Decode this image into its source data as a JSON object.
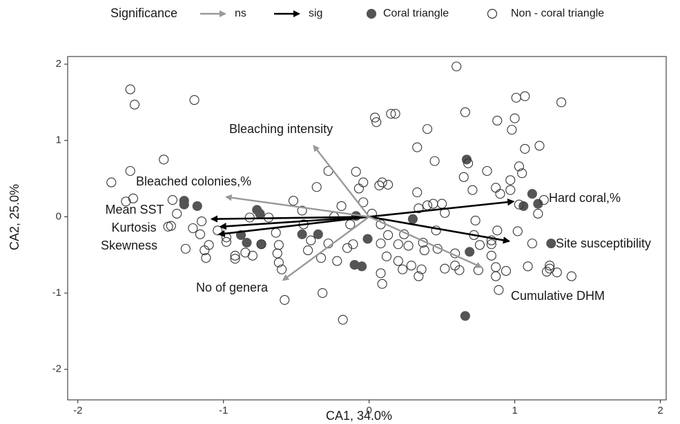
{
  "chart_data": {
    "type": "biplot",
    "xlabel": "CA1, 34.0%",
    "ylabel": "CA2, 25.0%",
    "xlim": [
      -2.07,
      2.04
    ],
    "ylim": [
      -2.4,
      2.1
    ],
    "xticks": [
      -2,
      -1,
      0,
      1,
      2
    ],
    "yticks": [
      -2,
      -1,
      0,
      1,
      2
    ],
    "grid": false,
    "legend": {
      "title": "Significance",
      "items": [
        {
          "name": "ns",
          "color": "#999999"
        },
        {
          "name": "sig",
          "color": "#000000"
        }
      ]
    },
    "arrows": [
      {
        "label": "Hard coral,%",
        "x": 0.99,
        "y": 0.2,
        "sig": true
      },
      {
        "label": "Site susceptibility",
        "x": 0.96,
        "y": -0.32,
        "sig": true
      },
      {
        "label": "Cumulative DHM",
        "x": 0.77,
        "y": -0.66,
        "sig": false
      },
      {
        "label": "Mean SST",
        "x": -1.08,
        "y": -0.03,
        "sig": true
      },
      {
        "label": "Kurtosis",
        "x": -1.02,
        "y": -0.13,
        "sig": true
      },
      {
        "label": "Skewness",
        "x": -1.03,
        "y": -0.23,
        "sig": true
      },
      {
        "label": "Bleached colonies,%",
        "x": -0.98,
        "y": 0.26,
        "sig": false
      },
      {
        "label": "Bleaching intensity",
        "x": -0.38,
        "y": 0.93,
        "sig": false
      },
      {
        "label": "No of genera",
        "x": -0.59,
        "y": -0.83,
        "sig": false
      }
    ],
    "series": [
      {
        "name": "Coral triangle",
        "color": "#555555",
        "filled": true,
        "x": [
          -1.27,
          -1.27,
          -1.18,
          -0.77,
          -0.75,
          -0.88,
          -0.84,
          -0.74,
          -0.46,
          -0.35,
          -0.09,
          -0.01,
          -0.1,
          -0.05,
          0.3,
          0.67,
          0.69,
          0.66,
          1.06,
          1.12,
          1.16,
          1.25
        ],
        "y": [
          0.21,
          0.16,
          0.14,
          0.09,
          0.04,
          -0.24,
          -0.34,
          -0.36,
          -0.23,
          -0.23,
          0.01,
          -0.29,
          -0.63,
          -0.65,
          -0.03,
          0.75,
          -0.46,
          -1.3,
          0.14,
          0.3,
          0.17,
          -0.35
        ]
      },
      {
        "name": "Non - coral triangle",
        "color": "#333333",
        "filled": false,
        "x": [
          -1.64,
          -1.61,
          -1.2,
          -1.41,
          -1.77,
          -1.64,
          -1.62,
          -1.67,
          -1.36,
          -1.38,
          -1.32,
          -1.35,
          -1.26,
          -1.21,
          -1.15,
          -1.16,
          -1.13,
          -1.12,
          -1.1,
          -1.04,
          -0.98,
          -0.98,
          -0.92,
          -0.92,
          -0.85,
          -0.8,
          -0.82,
          -0.74,
          -0.69,
          -0.64,
          -0.63,
          -0.62,
          -0.6,
          -0.62,
          -0.58,
          -0.52,
          -0.46,
          -0.45,
          -0.42,
          -0.4,
          -0.36,
          -0.33,
          -0.32,
          -0.28,
          -0.28,
          -0.24,
          -0.22,
          -0.19,
          -0.15,
          -0.13,
          -0.11,
          -0.09,
          -0.07,
          -0.04,
          -0.04,
          0.02,
          0.04,
          0.05,
          0.07,
          0.08,
          0.09,
          0.13,
          0.15,
          0.18,
          0.08,
          0.09,
          0.08,
          0.12,
          0.2,
          0.13,
          0.24,
          0.2,
          0.23,
          0.27,
          0.29,
          0.33,
          0.33,
          0.34,
          0.34,
          0.37,
          0.38,
          0.36,
          0.4,
          0.4,
          0.44,
          0.45,
          0.46,
          0.47,
          0.5,
          0.52,
          0.52,
          0.6,
          0.59,
          0.59,
          0.62,
          0.65,
          0.66,
          0.68,
          0.71,
          0.73,
          0.72,
          0.76,
          0.75,
          0.81,
          0.84,
          0.84,
          0.84,
          0.87,
          0.88,
          0.87,
          0.88,
          0.9,
          0.87,
          0.89,
          0.94,
          0.97,
          0.97,
          0.98,
          1.0,
          1.01,
          1.03,
          1.02,
          1.03,
          1.05,
          1.07,
          1.07,
          1.09,
          1.12,
          1.17,
          1.2,
          1.16,
          1.22,
          1.24,
          1.24,
          1.32,
          1.29,
          1.39,
          -0.18
        ],
        "y": [
          1.67,
          1.47,
          1.53,
          0.75,
          0.45,
          0.6,
          0.24,
          0.2,
          -0.12,
          -0.13,
          0.04,
          0.22,
          -0.42,
          -0.15,
          -0.06,
          -0.23,
          -0.44,
          -0.54,
          -0.37,
          -0.18,
          -0.33,
          -0.27,
          -0.51,
          -0.55,
          -0.47,
          -0.51,
          -0.01,
          -0.36,
          -0.01,
          -0.21,
          -0.48,
          -0.6,
          -0.69,
          -0.37,
          -1.09,
          0.21,
          0.08,
          -0.1,
          -0.44,
          -0.31,
          0.39,
          -0.54,
          -1.0,
          0.6,
          -0.35,
          0.0,
          -0.58,
          0.14,
          -0.41,
          -0.1,
          -0.36,
          0.59,
          0.37,
          0.19,
          0.45,
          0.04,
          1.3,
          1.24,
          0.41,
          -0.1,
          0.45,
          0.42,
          1.35,
          1.35,
          -0.74,
          -0.88,
          -0.35,
          -0.52,
          -0.36,
          -0.24,
          -0.23,
          -0.58,
          -0.69,
          -0.38,
          -0.64,
          0.91,
          0.32,
          0.11,
          -0.78,
          -0.34,
          -0.44,
          -0.69,
          0.15,
          1.15,
          0.17,
          0.73,
          -0.18,
          -0.42,
          0.17,
          0.05,
          -0.68,
          1.97,
          -0.48,
          -0.64,
          -0.7,
          0.52,
          1.37,
          0.7,
          0.35,
          -0.05,
          -0.24,
          -0.37,
          -0.7,
          0.6,
          -0.31,
          -0.36,
          -0.51,
          -0.66,
          1.26,
          0.38,
          -0.18,
          0.3,
          -0.78,
          -0.96,
          -0.71,
          0.35,
          0.48,
          1.14,
          1.29,
          1.56,
          0.16,
          -0.19,
          0.66,
          0.57,
          1.58,
          0.89,
          -0.65,
          -0.35,
          0.93,
          0.22,
          0.04,
          -0.72,
          -0.64,
          -0.68,
          1.5,
          -0.73,
          -0.78,
          -1.35
        ]
      }
    ]
  }
}
